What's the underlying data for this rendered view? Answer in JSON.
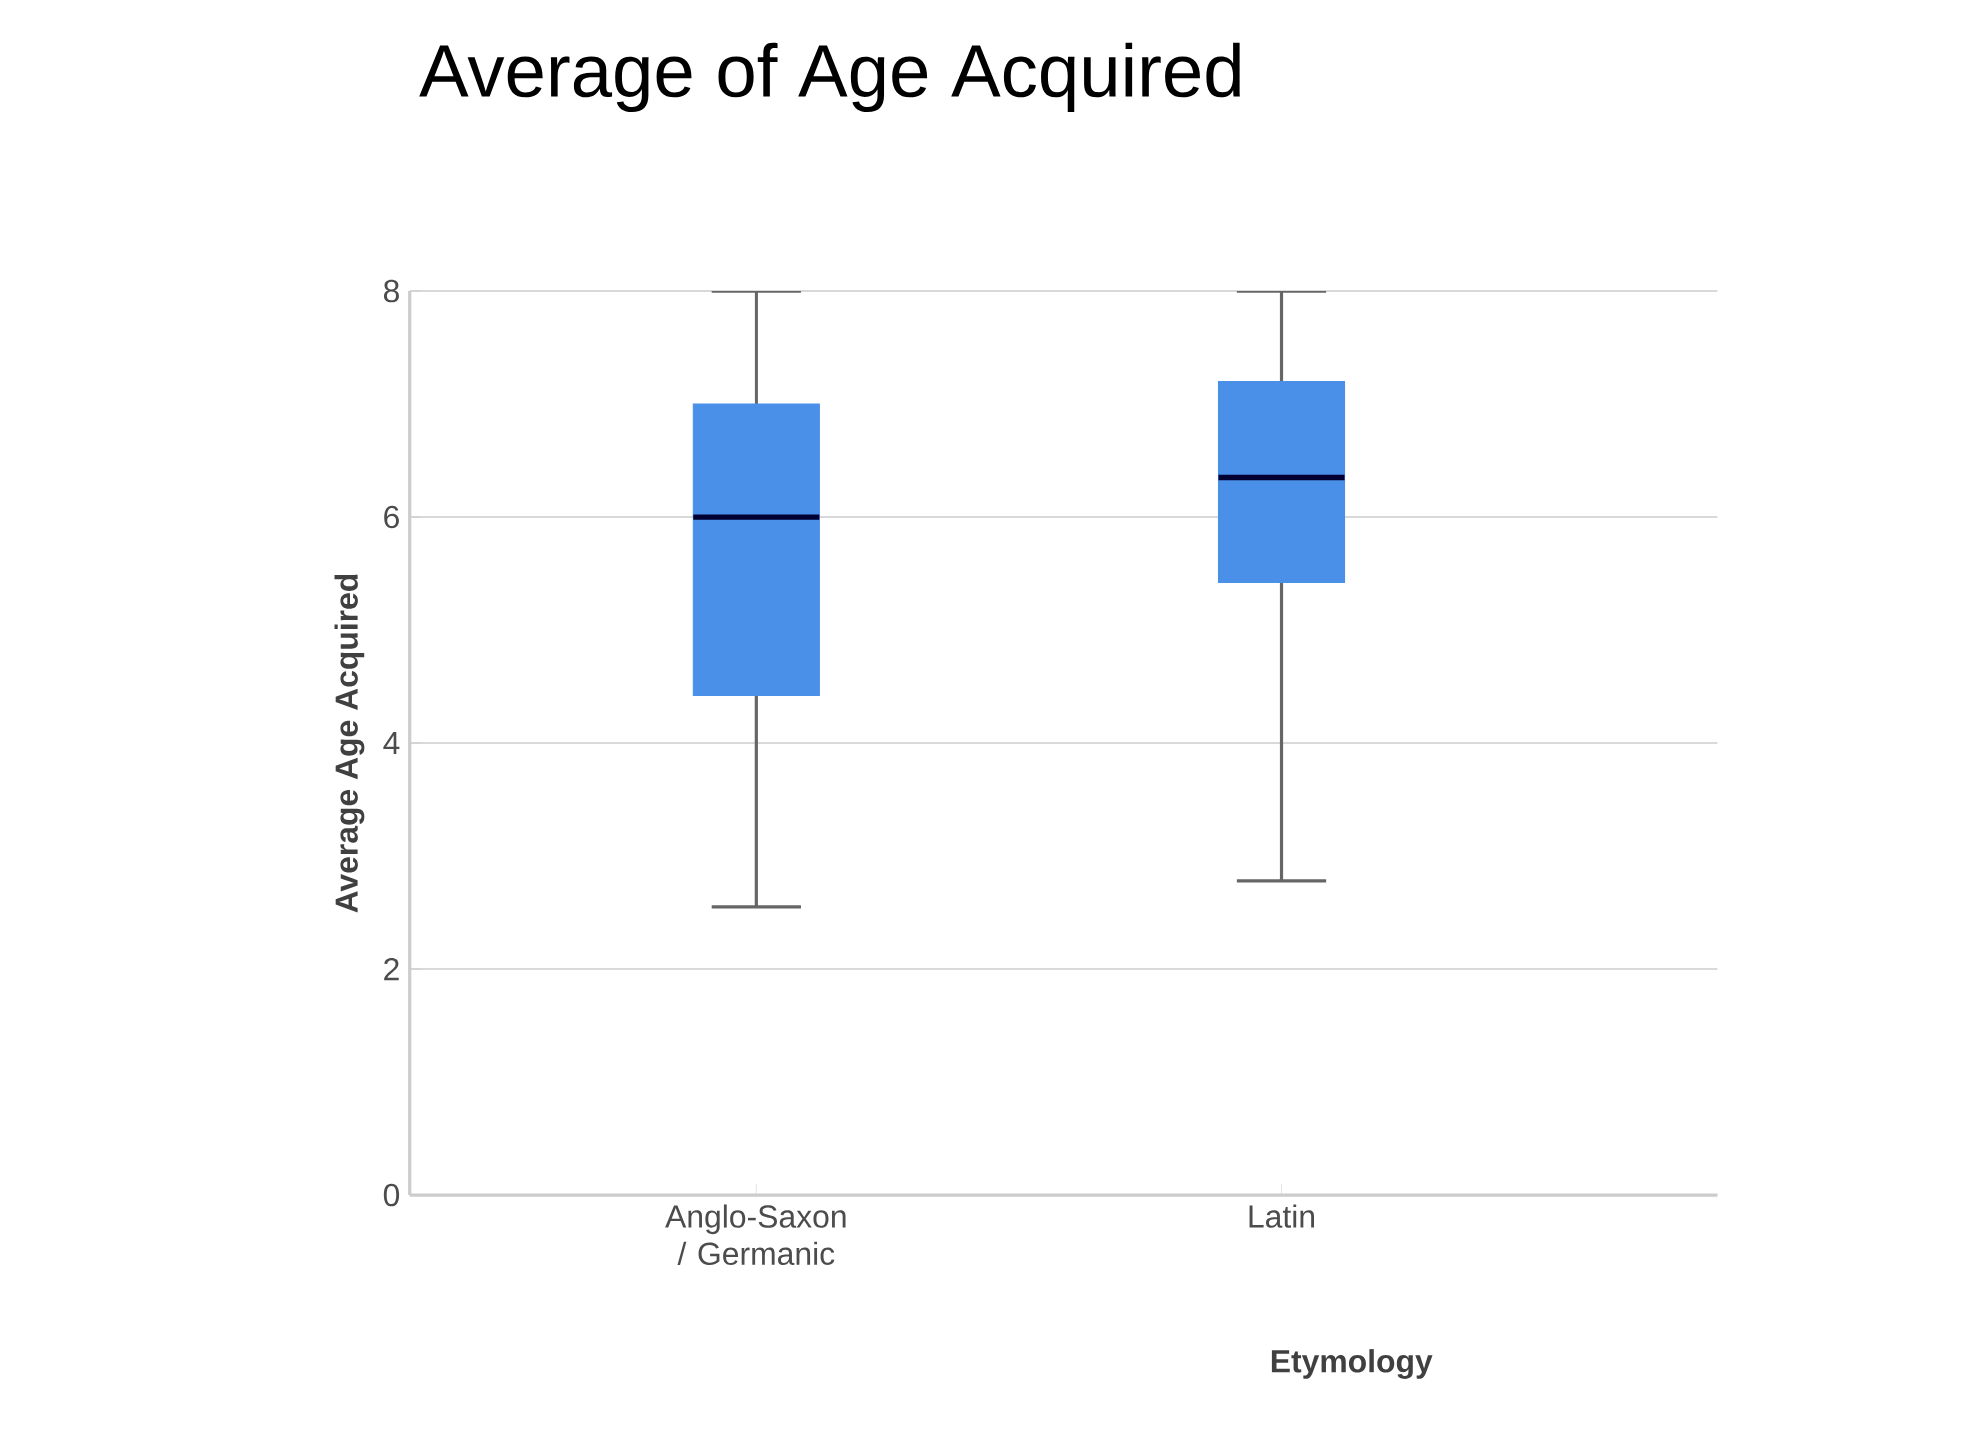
{
  "chart_data": {
    "type": "box",
    "title": "Average of Age Acquired",
    "xlabel": "Etymology",
    "ylabel": "Average Age Acquired",
    "categories": [
      "Anglo-Saxon / Germanic",
      "Latin"
    ],
    "boxes": [
      {
        "low": 2.55,
        "q1": 4.42,
        "median": 6.0,
        "q3": 7.0,
        "high": 8.0
      },
      {
        "low": 2.78,
        "q1": 5.42,
        "median": 6.35,
        "q3": 7.2,
        "high": 8.0
      }
    ],
    "color": "#4a8fe8",
    "ylim": [
      0,
      8
    ],
    "yticks": [
      0,
      2,
      4,
      6,
      8
    ],
    "grid": "y"
  }
}
